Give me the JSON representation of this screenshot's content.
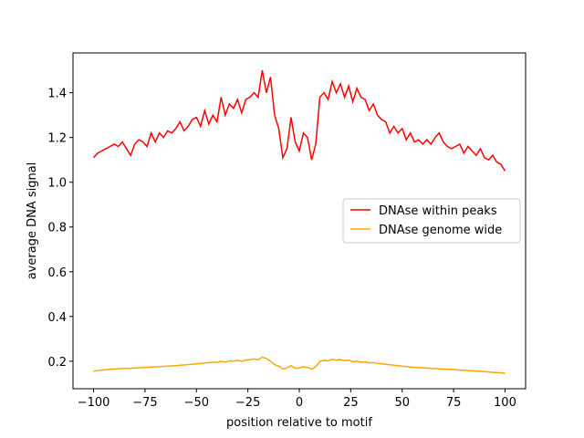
{
  "chart_data": {
    "type": "line",
    "xlabel": "position relative to motif",
    "ylabel": "average DNA signal",
    "x": [
      -100,
      -98,
      -96,
      -94,
      -92,
      -90,
      -88,
      -86,
      -84,
      -82,
      -80,
      -78,
      -76,
      -74,
      -72,
      -70,
      -68,
      -66,
      -64,
      -62,
      -60,
      -58,
      -56,
      -54,
      -52,
      -50,
      -48,
      -46,
      -44,
      -42,
      -40,
      -38,
      -36,
      -34,
      -32,
      -30,
      -28,
      -26,
      -24,
      -22,
      -20,
      -18,
      -16,
      -14,
      -12,
      -10,
      -8,
      -6,
      -4,
      -2,
      0,
      2,
      4,
      6,
      8,
      10,
      12,
      14,
      16,
      18,
      20,
      22,
      24,
      26,
      28,
      30,
      32,
      34,
      36,
      38,
      40,
      42,
      44,
      46,
      48,
      50,
      52,
      54,
      56,
      58,
      60,
      62,
      64,
      66,
      68,
      70,
      72,
      74,
      76,
      78,
      80,
      82,
      84,
      86,
      88,
      90,
      92,
      94,
      96,
      98,
      100
    ],
    "series": [
      {
        "name": "DNAse within peaks",
        "color": "#ff0000",
        "values": [
          1.11,
          1.13,
          1.14,
          1.15,
          1.16,
          1.17,
          1.16,
          1.18,
          1.15,
          1.12,
          1.17,
          1.19,
          1.18,
          1.16,
          1.22,
          1.18,
          1.22,
          1.2,
          1.23,
          1.22,
          1.24,
          1.27,
          1.23,
          1.25,
          1.28,
          1.29,
          1.25,
          1.32,
          1.26,
          1.3,
          1.27,
          1.38,
          1.3,
          1.35,
          1.33,
          1.37,
          1.31,
          1.37,
          1.38,
          1.4,
          1.38,
          1.5,
          1.4,
          1.47,
          1.3,
          1.24,
          1.11,
          1.15,
          1.29,
          1.18,
          1.14,
          1.22,
          1.2,
          1.1,
          1.17,
          1.38,
          1.4,
          1.37,
          1.45,
          1.4,
          1.44,
          1.38,
          1.43,
          1.36,
          1.42,
          1.38,
          1.37,
          1.32,
          1.35,
          1.3,
          1.28,
          1.27,
          1.22,
          1.25,
          1.22,
          1.24,
          1.19,
          1.22,
          1.18,
          1.19,
          1.17,
          1.19,
          1.17,
          1.2,
          1.22,
          1.18,
          1.16,
          1.15,
          1.16,
          1.17,
          1.13,
          1.16,
          1.14,
          1.12,
          1.15,
          1.11,
          1.1,
          1.12,
          1.09,
          1.08,
          1.05
        ]
      },
      {
        "name": "DNAse genome wide",
        "color": "#ffa500",
        "values": [
          0.155,
          0.158,
          0.16,
          0.162,
          0.164,
          0.165,
          0.166,
          0.167,
          0.168,
          0.168,
          0.17,
          0.171,
          0.172,
          0.173,
          0.174,
          0.175,
          0.176,
          0.177,
          0.178,
          0.179,
          0.18,
          0.182,
          0.183,
          0.185,
          0.186,
          0.188,
          0.19,
          0.192,
          0.194,
          0.196,
          0.195,
          0.2,
          0.196,
          0.202,
          0.2,
          0.204,
          0.2,
          0.205,
          0.207,
          0.21,
          0.206,
          0.218,
          0.212,
          0.2,
          0.185,
          0.178,
          0.165,
          0.17,
          0.18,
          0.168,
          0.17,
          0.175,
          0.172,
          0.165,
          0.175,
          0.2,
          0.204,
          0.202,
          0.208,
          0.205,
          0.207,
          0.202,
          0.205,
          0.198,
          0.2,
          0.196,
          0.197,
          0.193,
          0.194,
          0.19,
          0.188,
          0.186,
          0.184,
          0.182,
          0.18,
          0.178,
          0.176,
          0.174,
          0.173,
          0.172,
          0.171,
          0.17,
          0.168,
          0.167,
          0.166,
          0.165,
          0.164,
          0.163,
          0.162,
          0.16,
          0.159,
          0.158,
          0.157,
          0.156,
          0.155,
          0.154,
          0.152,
          0.15,
          0.149,
          0.148,
          0.146
        ]
      }
    ],
    "xlim": [
      -110,
      110
    ],
    "ylim": [
      0.077,
      1.578
    ],
    "xticks": [
      {
        "value": -100,
        "label": "−100"
      },
      {
        "value": -75,
        "label": "−75"
      },
      {
        "value": -50,
        "label": "−50"
      },
      {
        "value": -25,
        "label": "−25"
      },
      0,
      25,
      50,
      75,
      100
    ],
    "yticks": [
      0.2,
      0.4,
      0.6,
      0.8,
      {
        "value": 1,
        "label": "1.0"
      },
      1.2,
      1.4
    ],
    "legend": "center right"
  }
}
